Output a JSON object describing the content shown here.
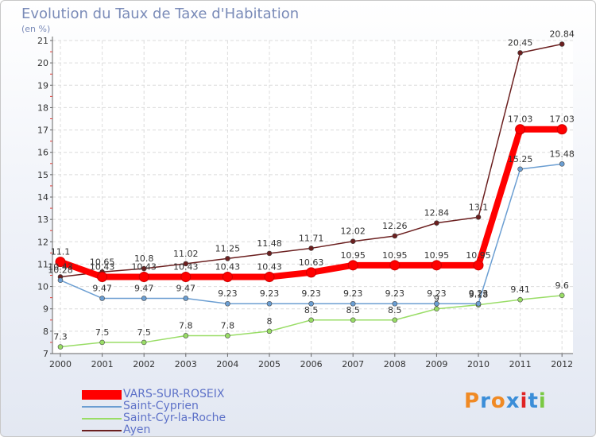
{
  "chart_data": {
    "type": "line",
    "title": "Evolution du Taux de Taxe d'Habitation",
    "unit_label": "(en %)",
    "x": [
      "2000",
      "2001",
      "2002",
      "2003",
      "2004",
      "2005",
      "2006",
      "2007",
      "2008",
      "2009",
      "2010",
      "2011",
      "2012"
    ],
    "ylim": [
      7,
      21
    ],
    "yticks": [
      7,
      8,
      9,
      10,
      11,
      12,
      13,
      14,
      15,
      16,
      17,
      18,
      19,
      20,
      21
    ],
    "grid": true,
    "legend_position": "bottom-left",
    "series": [
      {
        "name": "VARS-SUR-ROSEIX",
        "color": "#ff0000",
        "values": [
          11.1,
          10.43,
          10.43,
          10.43,
          10.43,
          10.43,
          10.63,
          10.95,
          10.95,
          10.95,
          10.95,
          17.03,
          17.03
        ],
        "labels": [
          "11.1",
          "10.43",
          "10.43",
          "10.43",
          "10.43",
          "10.43",
          "10.63",
          "10.95",
          "10.95",
          "10.95",
          "10.95",
          "17.03",
          "17.03"
        ]
      },
      {
        "name": "Saint-Cyprien",
        "color": "#6b9ed2",
        "values": [
          10.28,
          9.47,
          9.47,
          9.47,
          9.23,
          9.23,
          9.23,
          9.23,
          9.23,
          9.23,
          9.23,
          15.25,
          15.48
        ],
        "labels": [
          "10.28",
          "9.47",
          "9.47",
          "9.47",
          "9.23",
          "9.23",
          "9.23",
          "9.23",
          "9.23",
          "9.23",
          "9.23",
          "15.25",
          "15.48"
        ]
      },
      {
        "name": "Saint-Cyr-la-Roche",
        "color": "#99dd66",
        "values": [
          7.3,
          7.5,
          7.5,
          7.8,
          7.8,
          8,
          8.5,
          8.5,
          8.5,
          9,
          9.18,
          9.41,
          9.6
        ],
        "labels": [
          "7.3",
          "7.5",
          "7.5",
          "7.8",
          "7.8",
          "8",
          "8.5",
          "8.5",
          "8.5",
          "9",
          "9.18",
          "9.41",
          "9.6"
        ]
      },
      {
        "name": "Ayen",
        "color": "#6b1f1f",
        "values": [
          10.43,
          10.65,
          10.8,
          11.02,
          11.25,
          11.48,
          11.71,
          12.02,
          12.26,
          12.84,
          13.1,
          20.45,
          20.84
        ],
        "labels": [
          "10.43",
          "10.65",
          "10.8",
          "11.02",
          "11.25",
          "11.48",
          "11.71",
          "12.02",
          "12.26",
          "12.84",
          "13.1",
          "20.45",
          "20.84"
        ]
      }
    ]
  },
  "logo": {
    "text": "Proxiti"
  }
}
